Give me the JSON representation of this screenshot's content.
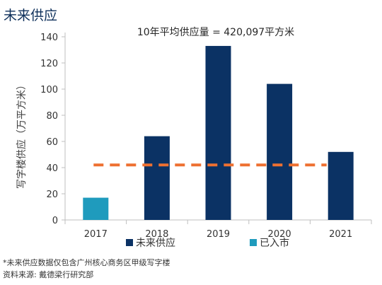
{
  "title": "未来供应",
  "colors": {
    "future_supply": "#0b3264",
    "completed": "#1f9bbd",
    "average_line": "#ee7031",
    "axis": "#bfbfbf",
    "text": "#333333"
  },
  "chart_data": {
    "type": "bar",
    "categories": [
      "2017",
      "2018",
      "2019",
      "2020",
      "2021"
    ],
    "series": [
      {
        "name": "未来供应",
        "values": [
          null,
          64,
          133,
          104,
          52
        ]
      },
      {
        "name": "已入市",
        "values": [
          17,
          null,
          null,
          null,
          null
        ]
      }
    ],
    "average": {
      "value": 42,
      "label": "10年平均供应量 = 420,097平方米",
      "style": "dashed"
    },
    "ylabel": "写字楼供应（万平方米）",
    "xlabel": "",
    "ylim": [
      0,
      140
    ],
    "yticks": [
      0,
      20,
      40,
      60,
      80,
      100,
      120,
      140
    ],
    "grid": false,
    "legend_position": "bottom"
  },
  "footnotes": [
    "*未来供应数据仅包含广州核心商务区甲级写字楼",
    "资料来源: 戴德梁行研究部"
  ]
}
